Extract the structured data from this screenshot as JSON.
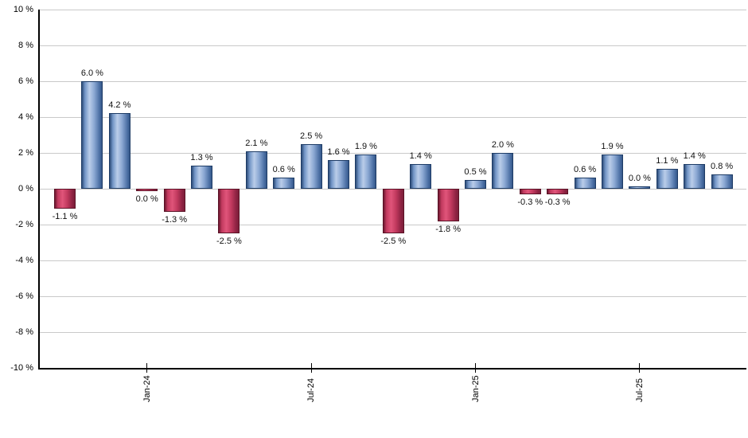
{
  "chart_data": {
    "type": "bar",
    "title": "",
    "xlabel": "",
    "ylabel": "",
    "ylim": [
      -10,
      10
    ],
    "y_tick_step": 2,
    "grid": true,
    "legend": "none",
    "y_ticks": [
      {
        "value": 10,
        "label": "10 %"
      },
      {
        "value": 8,
        "label": "8 %"
      },
      {
        "value": 6,
        "label": "6 %"
      },
      {
        "value": 4,
        "label": "4 %"
      },
      {
        "value": 2,
        "label": "2 %"
      },
      {
        "value": 0,
        "label": "0 %"
      },
      {
        "value": -2,
        "label": "-2 %"
      },
      {
        "value": -4,
        "label": "-4 %"
      },
      {
        "value": -6,
        "label": "-6 %"
      },
      {
        "value": -8,
        "label": "-8 %"
      },
      {
        "value": -10,
        "label": "-10 %"
      }
    ],
    "x_ticks": [
      {
        "label": "Jan-24",
        "bar_index": 3
      },
      {
        "label": "Jul-24",
        "bar_index": 9
      },
      {
        "label": "Jan-25",
        "bar_index": 15
      },
      {
        "label": "Jul-25",
        "bar_index": 21
      }
    ],
    "bars": [
      {
        "value": -1.1,
        "label": "-1.1 %",
        "sign": "negative"
      },
      {
        "value": 6.0,
        "label": "6.0 %",
        "sign": "positive"
      },
      {
        "value": 4.2,
        "label": "4.2 %",
        "sign": "positive"
      },
      {
        "value": 0.0,
        "label": "0.0 %",
        "sign": "negative"
      },
      {
        "value": -1.3,
        "label": "-1.3 %",
        "sign": "negative"
      },
      {
        "value": 1.3,
        "label": "1.3 %",
        "sign": "positive"
      },
      {
        "value": -2.5,
        "label": "-2.5 %",
        "sign": "negative"
      },
      {
        "value": 2.1,
        "label": "2.1 %",
        "sign": "positive"
      },
      {
        "value": 0.6,
        "label": "0.6 %",
        "sign": "positive"
      },
      {
        "value": 2.5,
        "label": "2.5 %",
        "sign": "positive"
      },
      {
        "value": 1.6,
        "label": "1.6 %",
        "sign": "positive"
      },
      {
        "value": 1.9,
        "label": "1.9 %",
        "sign": "positive"
      },
      {
        "value": -2.5,
        "label": "-2.5 %",
        "sign": "negative"
      },
      {
        "value": 1.4,
        "label": "1.4 %",
        "sign": "positive"
      },
      {
        "value": -1.8,
        "label": "-1.8 %",
        "sign": "negative"
      },
      {
        "value": 0.5,
        "label": "0.5 %",
        "sign": "positive"
      },
      {
        "value": 2.0,
        "label": "2.0 %",
        "sign": "positive"
      },
      {
        "value": -0.3,
        "label": "-0.3 %",
        "sign": "negative"
      },
      {
        "value": -0.3,
        "label": "-0.3 %",
        "sign": "negative"
      },
      {
        "value": 0.6,
        "label": "0.6 %",
        "sign": "positive"
      },
      {
        "value": 1.9,
        "label": "1.9 %",
        "sign": "positive"
      },
      {
        "value": 0.0,
        "label": "0.0 %",
        "sign": "positive"
      },
      {
        "value": 1.1,
        "label": "1.1 %",
        "sign": "positive"
      },
      {
        "value": 1.4,
        "label": "1.4 %",
        "sign": "positive"
      },
      {
        "value": 0.8,
        "label": "0.8 %",
        "sign": "positive"
      }
    ],
    "colors": {
      "positive_gradient": [
        "#2e4d79",
        "#7295c6",
        "#bacde9",
        "#8aa7d2",
        "#4c70a4",
        "#35578a"
      ],
      "positive_border": "#1e3c66",
      "negative_gradient": [
        "#6d1830",
        "#c23a5f",
        "#e0557a",
        "#c23a5f",
        "#8d2242",
        "#7d1f3b"
      ],
      "negative_border": "#5a1226",
      "gridline": "#c9c9c9",
      "axis": "#000000",
      "data_label_text": "#111111",
      "tick_label_text": "#000000",
      "background": "#ffffff"
    }
  }
}
